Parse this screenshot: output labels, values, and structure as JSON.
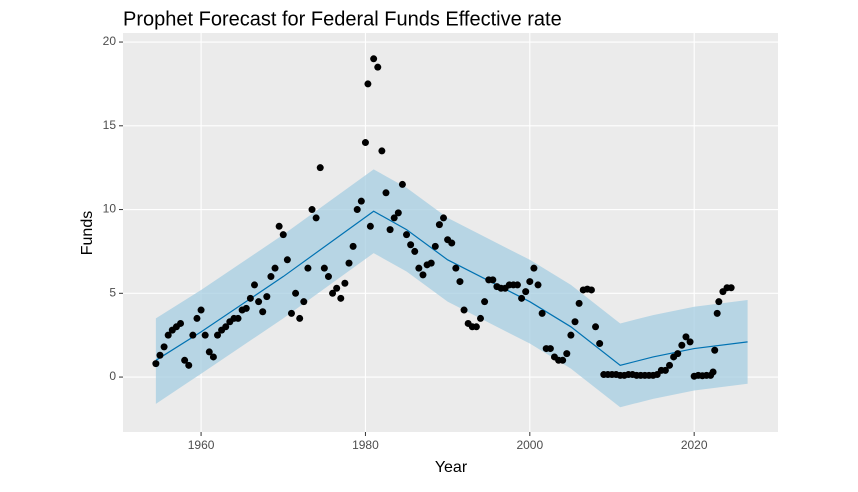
{
  "chart_data": {
    "type": "scatter",
    "title": "Prophet Forecast for Federal Funds Effective rate",
    "x_label": "Year",
    "y_label": "Funds",
    "xlim": [
      1950.5,
      2030.2
    ],
    "ylim": [
      -3.28,
      20.54
    ],
    "xticks": [
      1960,
      1980,
      2000,
      2020
    ],
    "yticks": [
      0,
      5,
      10,
      15,
      20
    ],
    "grid": true,
    "color": "#000000",
    "x": [
      1954.5,
      1955,
      1955.5,
      1956,
      1956.5,
      1957,
      1957.5,
      1958,
      1958.5,
      1959,
      1959.5,
      1960,
      1960.5,
      1961,
      1961.5,
      1962,
      1962.5,
      1963,
      1963.5,
      1964,
      1964.5,
      1965,
      1965.5,
      1966,
      1966.5,
      1967,
      1967.5,
      1968,
      1968.5,
      1969,
      1969.5,
      1970,
      1970.5,
      1971,
      1971.5,
      1972,
      1972.5,
      1973,
      1973.5,
      1974,
      1974.5,
      1975,
      1975.5,
      1976,
      1976.5,
      1977,
      1977.5,
      1978,
      1978.5,
      1979,
      1979.5,
      1980,
      1980.3,
      1980.6,
      1981,
      1981.5,
      1982,
      1982.5,
      1983,
      1983.5,
      1984,
      1984.5,
      1985,
      1985.5,
      1986,
      1986.5,
      1987,
      1987.5,
      1988,
      1988.5,
      1989,
      1989.5,
      1990,
      1990.5,
      1991,
      1991.5,
      1992,
      1992.5,
      1993,
      1993.5,
      1994,
      1994.5,
      1995,
      1995.5,
      1996,
      1996.5,
      1997,
      1997.5,
      1998,
      1998.5,
      1999,
      1999.5,
      2000,
      2000.5,
      2001,
      2001.5,
      2002,
      2002.5,
      2003,
      2003.5,
      2004,
      2004.5,
      2005,
      2005.5,
      2006,
      2006.5,
      2007,
      2007.5,
      2008,
      2008.5,
      2009,
      2009.5,
      2010,
      2010.5,
      2011,
      2011.5,
      2012,
      2012.5,
      2013,
      2013.5,
      2014,
      2014.5,
      2015,
      2015.5,
      2016,
      2016.5,
      2017,
      2017.5,
      2018,
      2018.5,
      2019,
      2019.5,
      2020,
      2020.5,
      2021,
      2021.5,
      2022,
      2022.3,
      2022.5,
      2022.8,
      2023,
      2023.5,
      2024,
      2024.5
    ],
    "values": [
      0.8,
      1.3,
      1.8,
      2.5,
      2.8,
      3.0,
      3.2,
      1.0,
      0.7,
      2.5,
      3.5,
      4.0,
      2.5,
      1.5,
      1.2,
      2.5,
      2.8,
      3.0,
      3.3,
      3.5,
      3.5,
      4.0,
      4.1,
      4.7,
      5.5,
      4.5,
      3.9,
      4.8,
      6.0,
      6.5,
      9.0,
      8.5,
      7.0,
      3.8,
      5.0,
      3.5,
      4.5,
      6.5,
      10.0,
      9.5,
      12.5,
      6.5,
      6.0,
      5.0,
      5.3,
      4.7,
      5.6,
      6.8,
      7.8,
      10.0,
      10.5,
      14.0,
      17.5,
      9.0,
      19.0,
      18.5,
      13.5,
      11.0,
      8.8,
      9.5,
      9.8,
      11.5,
      8.5,
      7.9,
      7.5,
      6.5,
      6.1,
      6.7,
      6.8,
      7.8,
      9.1,
      9.5,
      8.2,
      8.0,
      6.5,
      5.7,
      4.0,
      3.2,
      3.0,
      3.0,
      3.5,
      4.5,
      5.8,
      5.8,
      5.4,
      5.3,
      5.3,
      5.5,
      5.5,
      5.5,
      4.7,
      5.1,
      5.7,
      6.5,
      5.5,
      3.8,
      1.7,
      1.7,
      1.2,
      1.0,
      1.0,
      1.4,
      2.5,
      3.3,
      4.4,
      5.2,
      5.25,
      5.2,
      3.0,
      2.0,
      0.15,
      0.15,
      0.15,
      0.15,
      0.1,
      0.1,
      0.15,
      0.15,
      0.1,
      0.1,
      0.1,
      0.1,
      0.1,
      0.15,
      0.4,
      0.4,
      0.7,
      1.2,
      1.4,
      1.9,
      2.4,
      2.1,
      0.05,
      0.1,
      0.08,
      0.1,
      0.1,
      0.3,
      1.6,
      3.8,
      4.5,
      5.1,
      5.33,
      5.33
    ],
    "forecast": {
      "color": "#0072b2",
      "band_color": "#a6cde2",
      "x": [
        1954.5,
        1960,
        1970,
        1981,
        1985,
        1990,
        2000,
        2005,
        2011,
        2015,
        2020,
        2026.5
      ],
      "values": [
        1.0,
        2.7,
        6.0,
        9.9,
        8.8,
        7.0,
        4.5,
        3.0,
        0.7,
        1.2,
        1.7,
        2.1
      ],
      "lower": [
        -1.6,
        0.2,
        3.5,
        7.4,
        6.3,
        4.5,
        2.0,
        0.5,
        -1.8,
        -1.3,
        -0.8,
        -0.4
      ],
      "upper": [
        3.5,
        5.2,
        8.5,
        12.4,
        11.3,
        9.5,
        7.0,
        5.5,
        3.2,
        3.7,
        4.2,
        4.6
      ]
    }
  }
}
